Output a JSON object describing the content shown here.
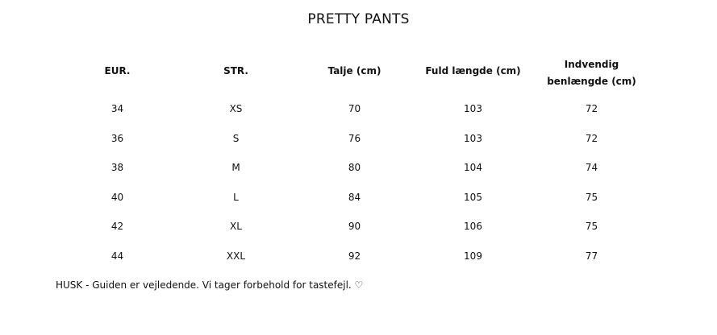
{
  "title": "PRETTY PANTS",
  "headers": [
    "EUR.",
    "STR.",
    "Talje (cm)",
    "Fuld længde (cm)",
    "Indvendig benlængde (cm)"
  ],
  "rows": [
    [
      "34",
      "XS",
      "70",
      "103",
      "72"
    ],
    [
      "36",
      "S",
      "76",
      "103",
      "72"
    ],
    [
      "38",
      "M",
      "80",
      "104",
      "74"
    ],
    [
      "40",
      "L",
      "84",
      "105",
      "75"
    ],
    [
      "42",
      "XL",
      "90",
      "106",
      "75"
    ],
    [
      "44",
      "XXL",
      "92",
      "109",
      "77"
    ]
  ],
  "note": "HUSK - Guiden er vejledende. Vi tager forbehold for tastefejl. ♡"
}
